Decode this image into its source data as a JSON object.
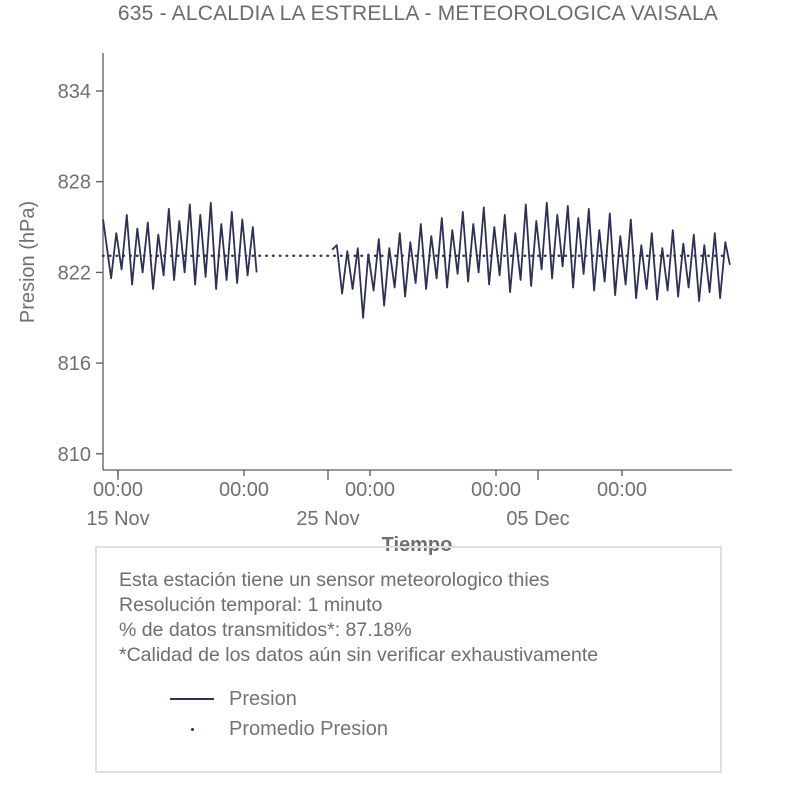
{
  "title": "635 - ALCALDIA LA ESTRELLA - METEOROLOGICA VAISALA",
  "colors": {
    "line": "#2d3154",
    "axis": "#5a5a5a",
    "tick_text": "#707070",
    "title_text": "#6b6b6b",
    "note_text": "#6e6e6e",
    "box_border": "#dedede"
  },
  "chart_data": {
    "type": "line",
    "title": "635 - ALCALDIA LA ESTRELLA - METEOROLOGICA VAISALA",
    "xlabel": "Tiempo",
    "ylabel": "Presion (hPa)",
    "ylim": [
      808.9,
      836.5
    ],
    "xlim_days_from_15nov": [
      -0.71,
      29.24
    ],
    "grid": false,
    "legend_position": "below-in-note-box",
    "y_ticks": [
      834,
      828,
      822,
      816,
      810
    ],
    "x_time_ticks": [
      {
        "t": 0,
        "label": "00:00"
      },
      {
        "t": 6,
        "label": "00:00"
      },
      {
        "t": 12,
        "label": "00:00"
      },
      {
        "t": 18,
        "label": "00:00"
      },
      {
        "t": 24,
        "label": "00:00"
      }
    ],
    "x_date_ticks": [
      {
        "t": 0,
        "label": "15 Nov"
      },
      {
        "t": 10,
        "label": "25 Nov"
      },
      {
        "t": 20,
        "label": "05 Dec"
      }
    ],
    "mean_value": 823.1,
    "data_gap_days": [
      6.6,
      10.2
    ],
    "series": [
      {
        "name": "Presion",
        "color": "#2d3154",
        "style": "solid",
        "units": "hPa",
        "x_units": "days since 15 Nov 00:00",
        "segments": [
          [
            [
              -0.71,
              825.5
            ],
            [
              -0.33,
              821.6
            ],
            [
              -0.08,
              824.6
            ],
            [
              0.17,
              822.2
            ],
            [
              0.42,
              825.8
            ],
            [
              0.67,
              821.2
            ],
            [
              0.92,
              824.9
            ],
            [
              1.17,
              822.0
            ],
            [
              1.42,
              825.3
            ],
            [
              1.67,
              820.9
            ],
            [
              1.92,
              824.5
            ],
            [
              2.17,
              821.8
            ],
            [
              2.42,
              826.2
            ],
            [
              2.67,
              821.5
            ],
            [
              2.92,
              825.4
            ],
            [
              3.17,
              822.0
            ],
            [
              3.42,
              826.5
            ],
            [
              3.67,
              821.2
            ],
            [
              3.92,
              825.8
            ],
            [
              4.17,
              821.7
            ],
            [
              4.42,
              826.6
            ],
            [
              4.67,
              820.9
            ],
            [
              4.92,
              825.2
            ],
            [
              5.17,
              821.5
            ],
            [
              5.42,
              826.0
            ],
            [
              5.67,
              821.3
            ],
            [
              5.92,
              825.5
            ],
            [
              6.17,
              821.8
            ],
            [
              6.42,
              825.0
            ],
            [
              6.6,
              822.0
            ]
          ],
          [
            [
              10.2,
              823.5
            ],
            [
              10.42,
              823.8
            ],
            [
              10.67,
              820.6
            ],
            [
              10.92,
              823.4
            ],
            [
              11.17,
              820.9
            ],
            [
              11.42,
              823.6
            ],
            [
              11.67,
              819.0
            ],
            [
              11.92,
              823.2
            ],
            [
              12.17,
              820.8
            ],
            [
              12.42,
              824.2
            ],
            [
              12.67,
              819.8
            ],
            [
              12.92,
              823.6
            ],
            [
              13.17,
              821.0
            ],
            [
              13.42,
              824.6
            ],
            [
              13.67,
              820.4
            ],
            [
              13.92,
              824.0
            ],
            [
              14.17,
              821.3
            ],
            [
              14.42,
              825.2
            ],
            [
              14.67,
              820.9
            ],
            [
              14.92,
              824.4
            ],
            [
              15.17,
              821.6
            ],
            [
              15.42,
              825.6
            ],
            [
              15.67,
              821.0
            ],
            [
              15.92,
              824.8
            ],
            [
              16.17,
              821.9
            ],
            [
              16.42,
              826.0
            ],
            [
              16.67,
              821.4
            ],
            [
              16.92,
              825.2
            ],
            [
              17.17,
              822.0
            ],
            [
              17.42,
              826.3
            ],
            [
              17.67,
              821.2
            ],
            [
              17.92,
              825.0
            ],
            [
              18.17,
              821.8
            ],
            [
              18.42,
              825.8
            ],
            [
              18.67,
              820.7
            ],
            [
              18.92,
              824.6
            ],
            [
              19.17,
              821.5
            ],
            [
              19.42,
              826.5
            ],
            [
              19.67,
              821.1
            ],
            [
              19.92,
              825.4
            ],
            [
              20.17,
              822.2
            ],
            [
              20.42,
              826.6
            ],
            [
              20.67,
              821.6
            ],
            [
              20.92,
              825.8
            ],
            [
              21.17,
              822.4
            ],
            [
              21.42,
              826.4
            ],
            [
              21.67,
              821.0
            ],
            [
              21.92,
              825.6
            ],
            [
              22.17,
              821.9
            ],
            [
              22.42,
              826.2
            ],
            [
              22.67,
              820.8
            ],
            [
              22.92,
              824.8
            ],
            [
              23.17,
              821.4
            ],
            [
              23.42,
              825.9
            ],
            [
              23.67,
              820.5
            ],
            [
              23.92,
              824.4
            ],
            [
              24.17,
              821.2
            ],
            [
              24.42,
              825.5
            ],
            [
              24.67,
              820.3
            ],
            [
              24.92,
              823.8
            ],
            [
              25.17,
              820.9
            ],
            [
              25.42,
              824.6
            ],
            [
              25.67,
              820.2
            ],
            [
              25.92,
              823.6
            ],
            [
              26.17,
              820.8
            ],
            [
              26.42,
              824.8
            ],
            [
              26.67,
              820.4
            ],
            [
              26.92,
              823.9
            ],
            [
              27.17,
              821.0
            ],
            [
              27.42,
              824.5
            ],
            [
              27.67,
              820.1
            ],
            [
              27.92,
              823.8
            ],
            [
              28.17,
              820.7
            ],
            [
              28.42,
              824.6
            ],
            [
              28.67,
              820.3
            ],
            [
              28.92,
              824.0
            ],
            [
              29.14,
              822.5
            ]
          ]
        ]
      },
      {
        "name": "Promedio Presion",
        "color": "#2d3154",
        "style": "dotted",
        "value": 823.1
      }
    ]
  },
  "note_box": {
    "lines": [
      "Esta estación tiene un sensor meteorologico thies",
      "Resolución temporal: 1 minuto",
      "% de datos transmitidos*: 87.18%",
      "*Calidad de los datos aún sin verificar exhaustivamente"
    ]
  },
  "legend": {
    "items": [
      {
        "label": "Presion",
        "marker": "line"
      },
      {
        "label": "Promedio Presion",
        "marker": "dot"
      }
    ]
  }
}
